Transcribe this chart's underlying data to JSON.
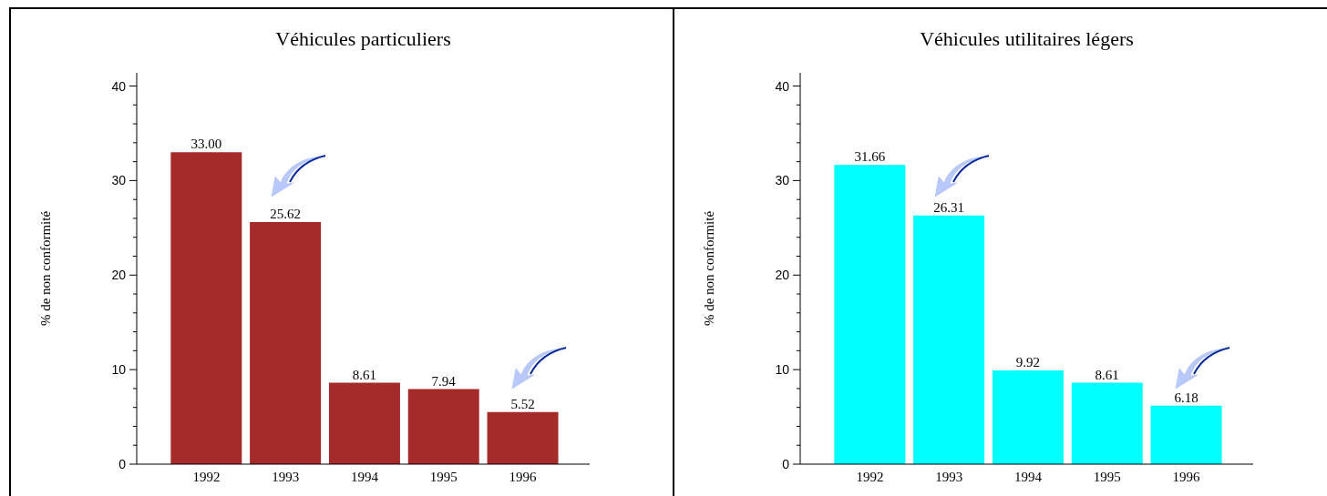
{
  "chart_data": [
    {
      "type": "bar",
      "title": "Véhicules particuliers",
      "ylabel": "% de non conformité",
      "categories": [
        "1992",
        "1993",
        "1994",
        "1995",
        "1996"
      ],
      "values": [
        33.0,
        25.62,
        8.61,
        7.94,
        5.52
      ],
      "value_labels": [
        "33.00",
        "25.62",
        "8.61",
        "7.94",
        "5.52"
      ],
      "color": "#a52a2a",
      "ylim": [
        0,
        41.4
      ],
      "yticks": [
        0,
        {
          "value": 2,
          "label": null
        },
        {
          "value": 4,
          "label": null
        },
        {
          "value": 6,
          "label": null
        },
        {
          "value": 8,
          "label": null
        },
        10,
        {
          "value": 12,
          "label": null
        },
        {
          "value": 14,
          "label": null
        },
        {
          "value": 16,
          "label": null
        },
        {
          "value": 18,
          "label": null
        },
        20,
        {
          "value": 22,
          "label": null
        },
        {
          "value": 24,
          "label": null
        },
        {
          "value": 26,
          "label": null
        },
        {
          "value": 28,
          "label": null
        },
        30,
        {
          "value": 32,
          "label": null
        },
        {
          "value": 34,
          "label": null
        },
        {
          "value": 36,
          "label": null
        },
        {
          "value": 38,
          "label": null
        },
        40
      ],
      "grid": false
    },
    {
      "type": "bar",
      "title": "Véhicules utilitaires légers",
      "ylabel": "% de non conformité",
      "categories": [
        "1992",
        "1993",
        "1994",
        "1995",
        "1996"
      ],
      "values": [
        31.66,
        26.31,
        9.92,
        8.61,
        6.18
      ],
      "value_labels": [
        "31.66",
        "26.31",
        "9.92",
        "8.61",
        "6.18"
      ],
      "color": "#00ffff",
      "ylim": [
        0,
        41.4
      ],
      "yticks": [
        0,
        {
          "value": 2,
          "label": null
        },
        {
          "value": 4,
          "label": null
        },
        {
          "value": 6,
          "label": null
        },
        {
          "value": 8,
          "label": null
        },
        10,
        {
          "value": 12,
          "label": null
        },
        {
          "value": 14,
          "label": null
        },
        {
          "value": 16,
          "label": null
        },
        {
          "value": 18,
          "label": null
        },
        20,
        {
          "value": 22,
          "label": null
        },
        {
          "value": 24,
          "label": null
        },
        {
          "value": 26,
          "label": null
        },
        {
          "value": 28,
          "label": null
        },
        30,
        {
          "value": 32,
          "label": null
        },
        {
          "value": 34,
          "label": null
        },
        {
          "value": 36,
          "label": null
        },
        {
          "value": 38,
          "label": null
        },
        40
      ],
      "grid": false
    }
  ]
}
